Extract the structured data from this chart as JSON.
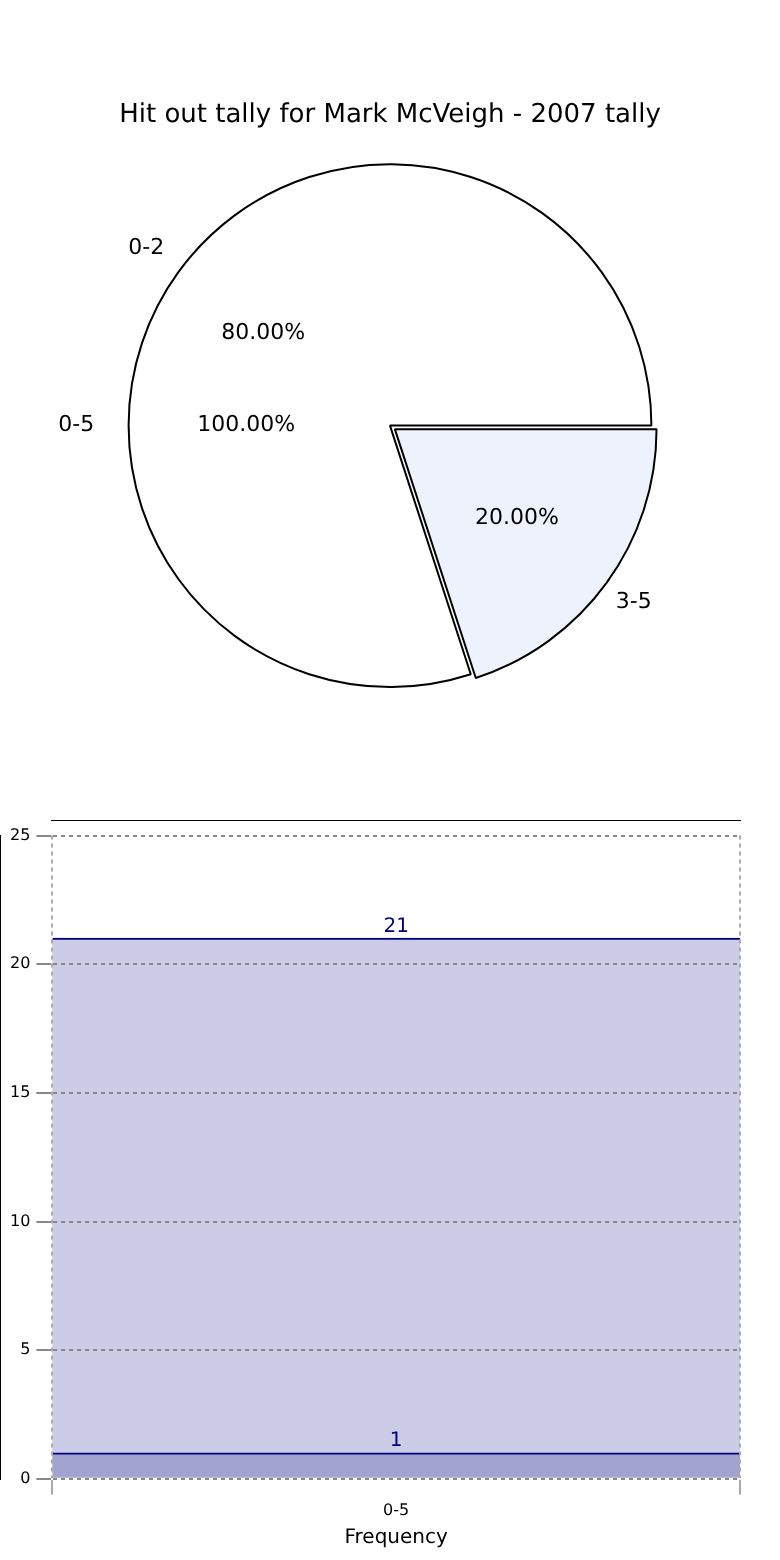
{
  "chart_data": [
    {
      "type": "pie",
      "title": "Hit out tally for Mark McVeigh - 2007 tally",
      "categories": [
        "0-2",
        "3-5"
      ],
      "values": [
        80,
        20
      ],
      "colors": [
        "#ffffff",
        "#eef2fc"
      ],
      "value_labels": [
        "80.00%",
        "20.00%"
      ],
      "annotations": [
        "0-5",
        "100.00%"
      ]
    },
    {
      "type": "bar",
      "categories": [
        "0-5"
      ],
      "xlabel": "Frequency",
      "series": [
        {
          "color": "#a3a3cf",
          "values": [
            1
          ],
          "value_labels": [
            "1"
          ]
        },
        {
          "color": "#ccccE6",
          "values": [
            20
          ],
          "value_labels": [
            null
          ]
        }
      ],
      "stacked": true,
      "totals": [
        "21"
      ],
      "ylim": [
        0,
        25
      ],
      "yticks": [
        0,
        5,
        10,
        15,
        20,
        25
      ],
      "grid": true
    }
  ]
}
